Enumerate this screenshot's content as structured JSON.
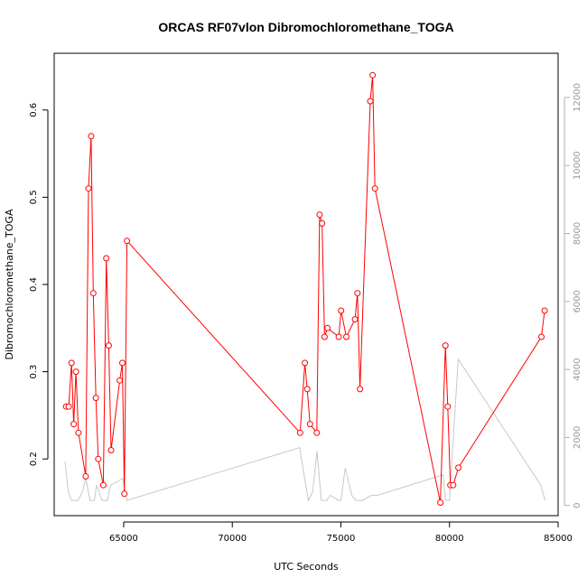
{
  "chart_data": {
    "type": "line",
    "title": "ORCAS RF07vlon Dibromochloromethane_TOGA",
    "xlabel": "UTC Seconds",
    "ylabel": "Dibromochloromethane_TOGA",
    "y2label": "",
    "xlim": [
      61800,
      85000
    ],
    "ylim": [
      0.135,
      0.665
    ],
    "y2lim": [
      -300,
      13300
    ],
    "x_ticks": [
      {
        "value": 65000,
        "label": "65000"
      },
      {
        "value": 70000,
        "label": "70000"
      },
      {
        "value": 75000,
        "label": "75000"
      },
      {
        "value": 80000,
        "label": "80000"
      },
      {
        "value": 85000,
        "label": "85000"
      }
    ],
    "y_ticks": [
      {
        "value": 0.2,
        "label": "0.2"
      },
      {
        "value": 0.3,
        "label": "0.3"
      },
      {
        "value": 0.4,
        "label": "0.4"
      },
      {
        "value": 0.5,
        "label": "0.5"
      },
      {
        "value": 0.6,
        "label": "0.6"
      }
    ],
    "y2_ticks": [
      {
        "value": 0,
        "label": "0"
      },
      {
        "value": 2000,
        "label": "2000"
      },
      {
        "value": 4000,
        "label": "4000"
      },
      {
        "value": 6000,
        "label": "6000"
      },
      {
        "value": 8000,
        "label": "8000"
      },
      {
        "value": 10000,
        "label": "10000"
      },
      {
        "value": 12000,
        "label": "12000"
      }
    ],
    "grid": false,
    "series": [
      {
        "axis": "left",
        "color": "#ff0000",
        "marker": "open-circle",
        "points": [
          [
            62350,
            0.26
          ],
          [
            62470,
            0.26
          ],
          [
            62600,
            0.31
          ],
          [
            62700,
            0.24
          ],
          [
            62800,
            0.3
          ],
          [
            62920,
            0.23
          ],
          [
            63250,
            0.18
          ],
          [
            63380,
            0.51
          ],
          [
            63500,
            0.57
          ],
          [
            63600,
            0.39
          ],
          [
            63720,
            0.27
          ],
          [
            63830,
            0.2
          ],
          [
            64060,
            0.17
          ],
          [
            64200,
            0.43
          ],
          [
            64310,
            0.33
          ],
          [
            64420,
            0.21
          ],
          [
            64820,
            0.29
          ],
          [
            64940,
            0.31
          ],
          [
            65030,
            0.16
          ],
          [
            65150,
            0.45
          ],
          [
            73120,
            0.23
          ],
          [
            73340,
            0.31
          ],
          [
            73450,
            0.28
          ],
          [
            73580,
            0.24
          ],
          [
            73890,
            0.23
          ],
          [
            74020,
            0.48
          ],
          [
            74130,
            0.47
          ],
          [
            74250,
            0.34
          ],
          [
            74380,
            0.35
          ],
          [
            74900,
            0.34
          ],
          [
            75010,
            0.37
          ],
          [
            75250,
            0.34
          ],
          [
            75650,
            0.36
          ],
          [
            75760,
            0.39
          ],
          [
            75880,
            0.28
          ],
          [
            76350,
            0.61
          ],
          [
            76460,
            0.64
          ],
          [
            76570,
            0.51
          ],
          [
            79580,
            0.15
          ],
          [
            79810,
            0.33
          ],
          [
            79920,
            0.26
          ],
          [
            80040,
            0.17
          ],
          [
            80170,
            0.17
          ],
          [
            80410,
            0.19
          ],
          [
            84230,
            0.34
          ],
          [
            84380,
            0.37
          ]
        ]
      },
      {
        "axis": "right",
        "color": "#c8c8c8",
        "marker": "none",
        "points": [
          [
            62300,
            1300
          ],
          [
            62450,
            400
          ],
          [
            62600,
            150
          ],
          [
            62900,
            150
          ],
          [
            63100,
            400
          ],
          [
            63250,
            800
          ],
          [
            63450,
            150
          ],
          [
            63650,
            150
          ],
          [
            63750,
            600
          ],
          [
            64000,
            150
          ],
          [
            64250,
            150
          ],
          [
            64400,
            600
          ],
          [
            64700,
            700
          ],
          [
            64950,
            800
          ],
          [
            65150,
            150
          ],
          [
            73100,
            1700
          ],
          [
            73500,
            150
          ],
          [
            73700,
            400
          ],
          [
            73900,
            1600
          ],
          [
            74100,
            150
          ],
          [
            74350,
            150
          ],
          [
            74500,
            300
          ],
          [
            74900,
            150
          ],
          [
            75000,
            150
          ],
          [
            75200,
            1100
          ],
          [
            75500,
            300
          ],
          [
            75700,
            150
          ],
          [
            76000,
            150
          ],
          [
            76400,
            300
          ],
          [
            76700,
            300
          ],
          [
            79700,
            900
          ],
          [
            79820,
            150
          ],
          [
            80000,
            150
          ],
          [
            80400,
            4300
          ],
          [
            84200,
            600
          ],
          [
            84400,
            150
          ]
        ]
      }
    ]
  }
}
